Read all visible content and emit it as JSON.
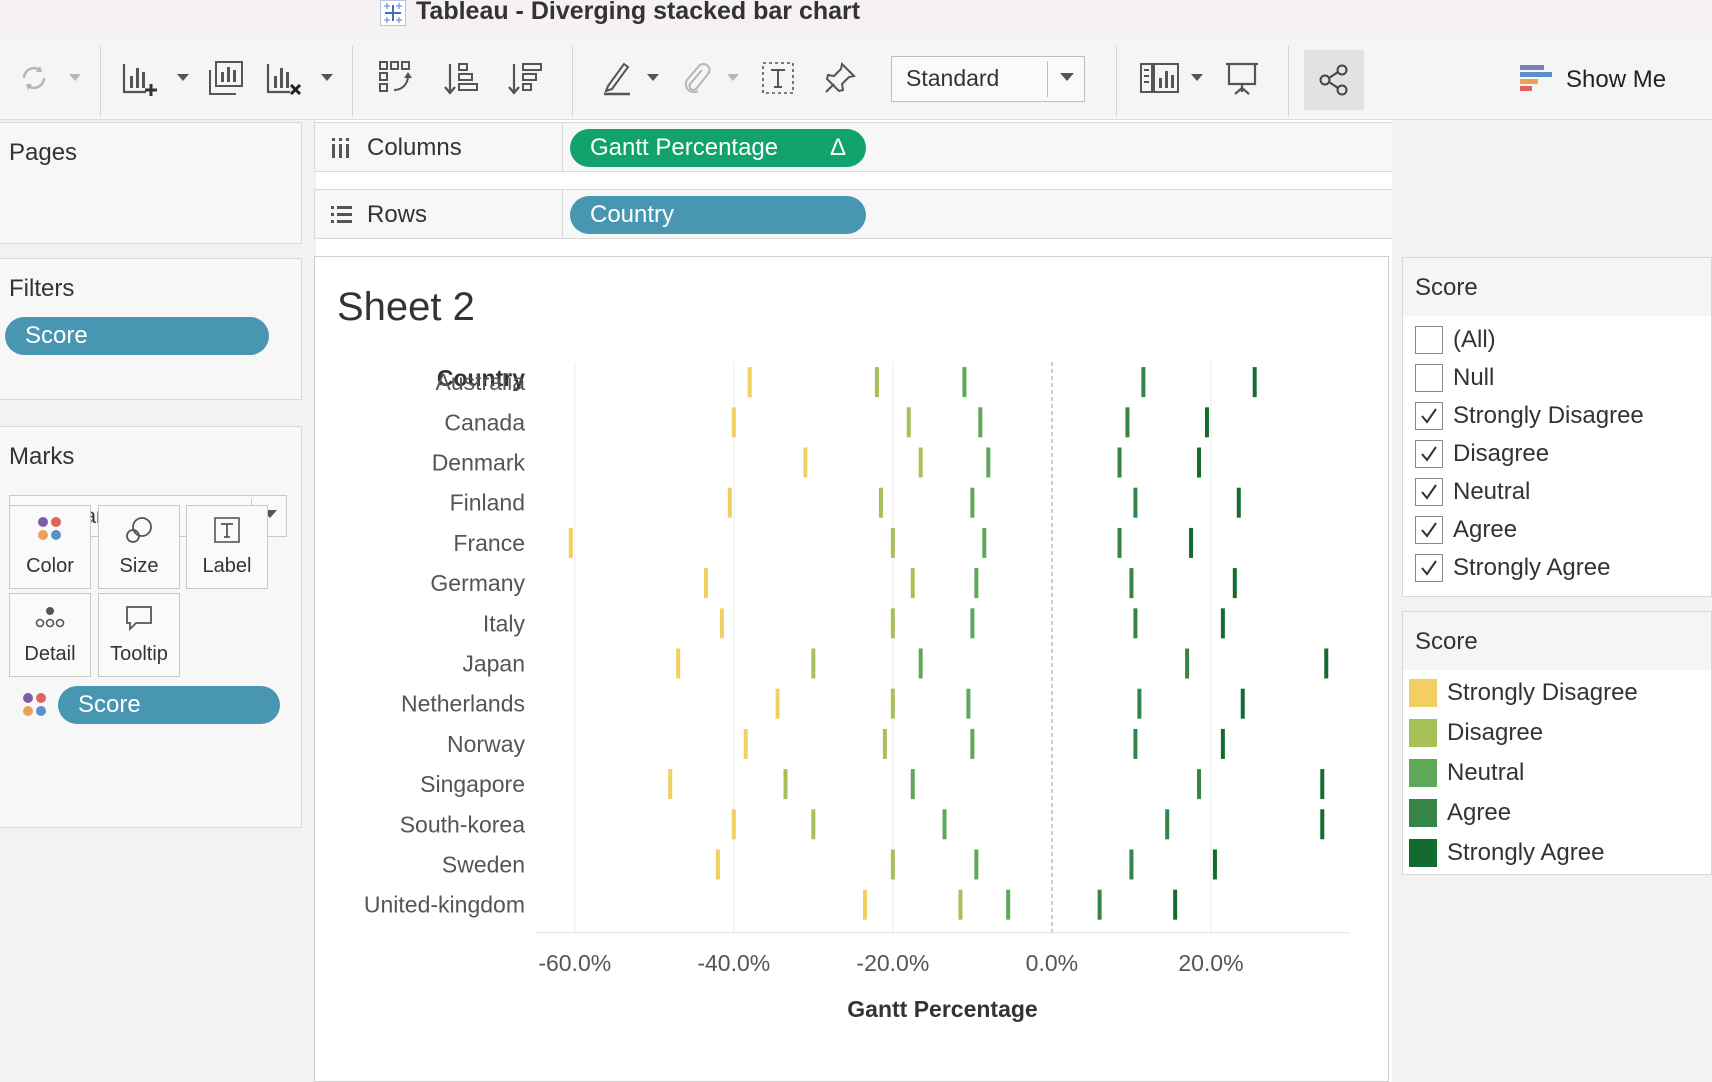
{
  "window": {
    "title": "Tableau - Diverging stacked bar chart"
  },
  "toolbar": {
    "fit_value": "Standard",
    "show_me_label": "Show Me",
    "icons": [
      "refresh-icon",
      "new-worksheet-icon",
      "duplicate-sheet-icon",
      "clear-sheet-icon",
      "swap-axes-icon",
      "sort-ascending-icon",
      "sort-descending-icon",
      "highlight-icon",
      "paperclip-icon",
      "text-icon",
      "pin-icon",
      "presentation-icon",
      "share-icon",
      "show-me-icon"
    ]
  },
  "pages": {
    "title": "Pages"
  },
  "filters": {
    "title": "Filters",
    "pills": [
      "Score"
    ]
  },
  "marks": {
    "title": "Marks",
    "type": "Gantt Bar",
    "cards": {
      "color": "Color",
      "size": "Size",
      "label": "Label",
      "detail": "Detail",
      "tooltip": "Tooltip"
    },
    "color_pill": "Score"
  },
  "shelves": {
    "columns": {
      "label": "Columns",
      "pill": "Gantt Percentage",
      "delta": "Δ"
    },
    "rows": {
      "label": "Rows",
      "pill": "Country"
    }
  },
  "sheet": {
    "title": "Sheet 2"
  },
  "score_filter": {
    "title": "Score",
    "items": [
      {
        "label": "(All)",
        "checked": false
      },
      {
        "label": "Null",
        "checked": false
      },
      {
        "label": "Strongly Disagree",
        "checked": true
      },
      {
        "label": "Disagree",
        "checked": true
      },
      {
        "label": "Neutral",
        "checked": true
      },
      {
        "label": "Agree",
        "checked": true
      },
      {
        "label": "Strongly Agree",
        "checked": true
      }
    ]
  },
  "score_legend": {
    "title": "Score",
    "items": [
      {
        "label": "Strongly Disagree",
        "color": "#f2cf63"
      },
      {
        "label": "Disagree",
        "color": "#a7c15a"
      },
      {
        "label": "Neutral",
        "color": "#5fa85a"
      },
      {
        "label": "Agree",
        "color": "#368447"
      },
      {
        "label": "Strongly Agree",
        "color": "#136b30"
      }
    ]
  },
  "chart_data": {
    "type": "gantt",
    "row_header": "Country",
    "xlabel": "Gantt Percentage",
    "xlim": [
      -65,
      40
    ],
    "x_ticks": [
      -60,
      -40,
      -20,
      0,
      20
    ],
    "x_tick_labels": [
      "-60.0%",
      "-40.0%",
      "-20.0%",
      "0.0%",
      "20.0%"
    ],
    "categories": [
      "Australia",
      "Canada",
      "Denmark",
      "Finland",
      "France",
      "Germany",
      "Italy",
      "Japan",
      "Netherlands",
      "Norway",
      "Singapore",
      "South-korea",
      "Sweden",
      "United-kingdom"
    ],
    "series": [
      {
        "name": "Strongly Disagree",
        "color": "#f2cf63",
        "values": [
          -38.0,
          -40.0,
          -31.0,
          -40.5,
          -60.5,
          -43.5,
          -41.5,
          -47.0,
          -34.5,
          -38.5,
          -48.0,
          -40.0,
          -42.0,
          -23.5
        ]
      },
      {
        "name": "Disagree",
        "color": "#a7c15a",
        "values": [
          -22.0,
          -18.0,
          -16.5,
          -21.5,
          -20.0,
          -17.5,
          -20.0,
          -30.0,
          -20.0,
          -21.0,
          -33.5,
          -30.0,
          -20.0,
          -11.5
        ]
      },
      {
        "name": "Neutral",
        "color": "#5fa85a",
        "values": [
          -11.0,
          -9.0,
          -8.0,
          -10.0,
          -8.5,
          -9.5,
          -10.0,
          -16.5,
          -10.5,
          -10.0,
          -17.5,
          -13.5,
          -9.5,
          -5.5
        ]
      },
      {
        "name": "Agree",
        "color": "#368447",
        "values": [
          11.5,
          9.5,
          8.5,
          10.5,
          8.5,
          10.0,
          10.5,
          17.0,
          11.0,
          10.5,
          18.5,
          14.5,
          10.0,
          6.0
        ]
      },
      {
        "name": "Strongly Agree",
        "color": "#136b30",
        "values": [
          25.5,
          19.5,
          18.5,
          23.5,
          17.5,
          23.0,
          21.5,
          34.5,
          24.0,
          21.5,
          34.0,
          34.0,
          20.5,
          15.5
        ]
      }
    ]
  }
}
